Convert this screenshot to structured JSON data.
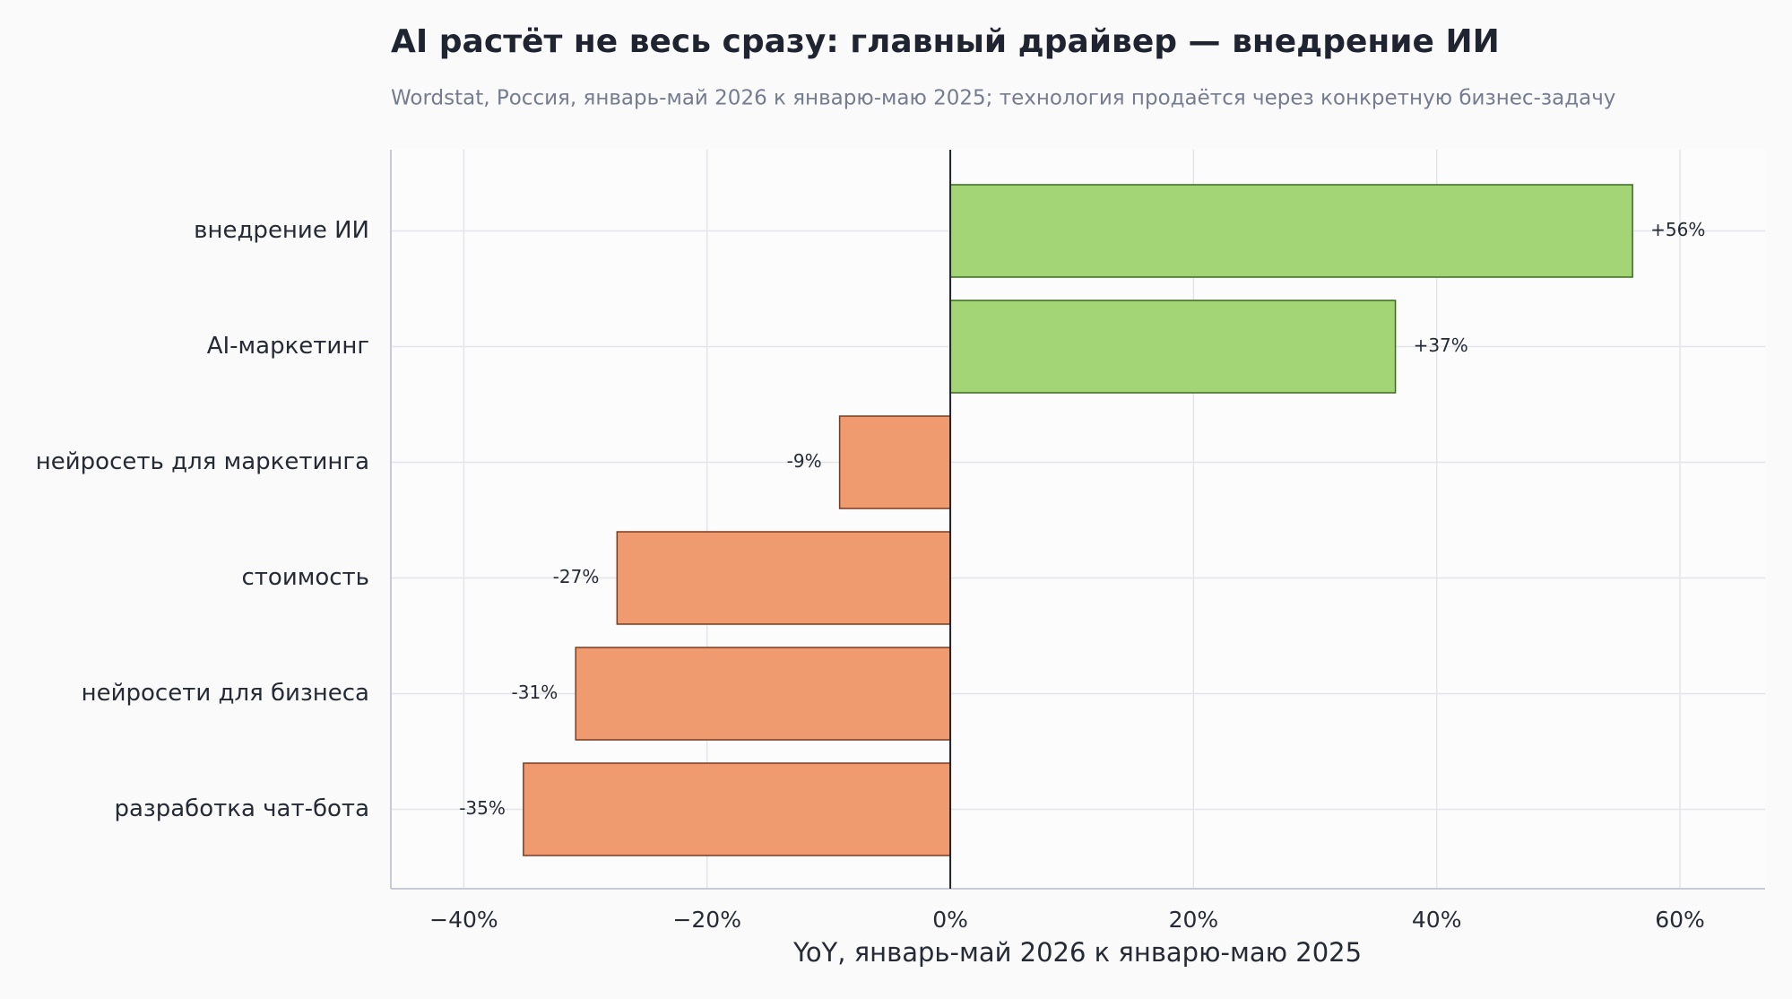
{
  "chart_data": {
    "type": "barh",
    "title": "AI растёт не весь сразу: главный драйвер — внедрение ИИ",
    "subtitle": "Wordstat, Россия, январь-май 2026 к январю-маю 2025; технология продаётся через конкретную бизнес-задачу",
    "xlabel": "YoY, январь-май 2026 к январю-маю 2025",
    "categories": [
      "внедрение ИИ",
      "AI-маркетинг",
      "нейросеть для маркетинга",
      "стоимость",
      "нейросети для бизнеса",
      "разработка чат-бота"
    ],
    "values": [
      56.1,
      36.6,
      -9.1,
      -27.4,
      -30.8,
      -35.1
    ],
    "value_labels": [
      "+56%",
      "+37%",
      "-9%",
      "-27%",
      "-31%",
      "-35%"
    ],
    "colors": [
      "#a3d576",
      "#a3d576",
      "#f09a6f",
      "#f09a6f",
      "#f09a6f",
      "#f09a6f"
    ],
    "xlim": [
      -46,
      67
    ],
    "xticks": [
      {
        "value": -40,
        "label": "−40%"
      },
      {
        "value": -20,
        "label": "−20%"
      },
      {
        "value": 0,
        "label": "0%"
      },
      {
        "value": 20,
        "label": "20%"
      },
      {
        "value": 40,
        "label": "40%"
      },
      {
        "value": 60,
        "label": "60%"
      }
    ],
    "grid": true
  }
}
